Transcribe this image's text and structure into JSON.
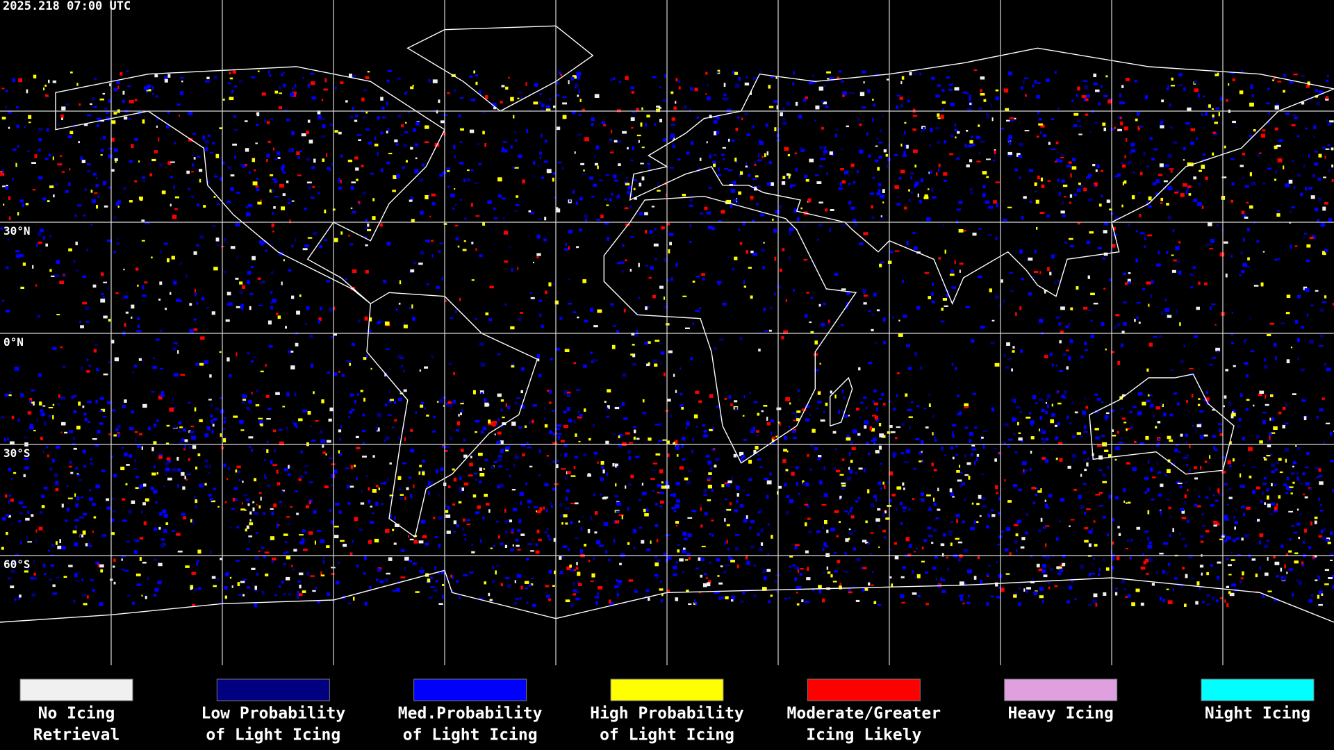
{
  "header": {
    "timestamp": "2025.218 07:00 UTC"
  },
  "map": {
    "lat_labels": [
      "30°N",
      "0°N",
      "30°S",
      "60°S"
    ]
  },
  "legend": {
    "items": [
      {
        "lines": [
          "No Icing",
          "Retrieval"
        ],
        "color": "#f0f0f0"
      },
      {
        "lines": [
          "Low Probability",
          "of Light Icing"
        ],
        "color": "#000080"
      },
      {
        "lines": [
          "Med.Probability",
          "of Light Icing"
        ],
        "color": "#0000ff"
      },
      {
        "lines": [
          "High Probability",
          "of Light Icing"
        ],
        "color": "#ffff00"
      },
      {
        "lines": [
          "Moderate/Greater",
          "Icing Likely"
        ],
        "color": "#ff0000"
      },
      {
        "lines": [
          "Heavy Icing"
        ],
        "color": "#e0a0e0"
      },
      {
        "lines": [
          "Night Icing"
        ],
        "color": "#00ffff"
      }
    ]
  }
}
